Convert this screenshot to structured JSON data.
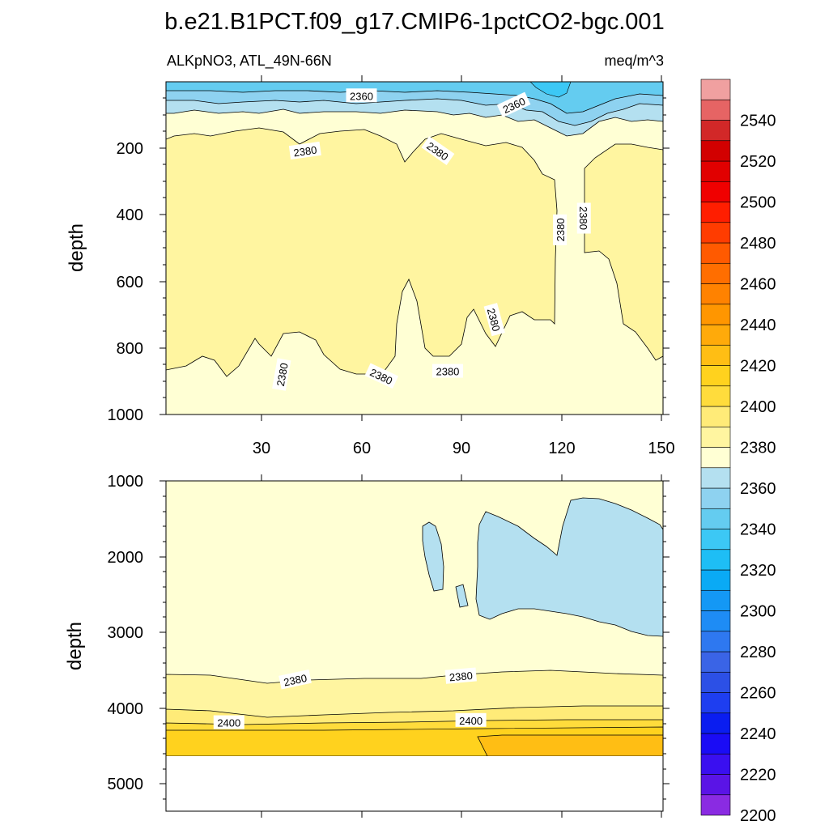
{
  "figure": {
    "title": "b.e21.B1PCT.f09_g17.CMIP6-1pctCO2-bgc.001"
  },
  "chart_data": [
    {
      "type": "contour",
      "panel": "top",
      "left_label": "ALKpNO3, ATL_49N-66N",
      "right_label": "meq/m^3",
      "ylabel": "depth",
      "xlabel": "",
      "xlim": [
        1,
        151
      ],
      "ylim": [
        1000,
        0
      ],
      "x_ticks": [
        30,
        60,
        90,
        120,
        150
      ],
      "y_ticks": [
        200,
        400,
        600,
        800,
        1000
      ],
      "contour_labels": [
        {
          "text": "2360",
          "x": 60,
          "y": 42
        },
        {
          "text": "2360",
          "x": 106,
          "y": 70
        },
        {
          "text": "2380",
          "x": 43,
          "y": 208
        },
        {
          "text": "2380",
          "x": 83,
          "y": 208
        },
        {
          "text": "2380",
          "x": 120,
          "y": 445
        },
        {
          "text": "2380",
          "x": 127,
          "y": 410
        },
        {
          "text": "2380",
          "x": 100,
          "y": 715
        },
        {
          "text": "2380",
          "x": 36,
          "y": 880
        },
        {
          "text": "2380",
          "x": 66,
          "y": 885
        },
        {
          "text": "2380",
          "x": 86,
          "y": 870
        }
      ]
    },
    {
      "type": "contour",
      "panel": "bottom",
      "ylabel": "depth",
      "xlabel": "",
      "xlim": [
        1,
        151
      ],
      "ylim": [
        5400,
        1000
      ],
      "y_ticks": [
        1000,
        2000,
        3000,
        4000,
        5000
      ],
      "contour_labels": [
        {
          "text": "2380",
          "x": 40,
          "y": 3650
        },
        {
          "text": "2380",
          "x": 90,
          "y": 3600
        },
        {
          "text": "2400",
          "x": 20,
          "y": 4220
        },
        {
          "text": "2400",
          "x": 93,
          "y": 4190
        }
      ]
    },
    {
      "type": "colorbar",
      "levels": [
        2200,
        2210,
        2220,
        2230,
        2240,
        2250,
        2260,
        2270,
        2280,
        2290,
        2300,
        2310,
        2320,
        2330,
        2340,
        2350,
        2360,
        2370,
        2380,
        2390,
        2400,
        2410,
        2420,
        2430,
        2440,
        2450,
        2460,
        2470,
        2480,
        2490,
        2500,
        2510,
        2520,
        2530,
        2540,
        2550,
        2560
      ],
      "tick_labels": [
        "2200",
        "2220",
        "2240",
        "2260",
        "2280",
        "2300",
        "2320",
        "2340",
        "2360",
        "2380",
        "2400",
        "2420",
        "2440",
        "2460",
        "2480",
        "2500",
        "2520",
        "2540"
      ],
      "colors": [
        "#8a2be2",
        "#5a14e6",
        "#3a0ff0",
        "#1a0cf5",
        "#0a1df0",
        "#1e3ef0",
        "#2c50e6",
        "#3a64e6",
        "#2e78f0",
        "#1e8cf5",
        "#1498f5",
        "#0aaaf5",
        "#1ebef5",
        "#3cc8f5",
        "#64ccf0",
        "#8ed2f0",
        "#b4e0f0",
        "#ffffd4",
        "#fff5a0",
        "#ffeb78",
        "#ffdc3c",
        "#ffd21e",
        "#ffbe14",
        "#ffaa0a",
        "#ff9600",
        "#ff8200",
        "#ff6e00",
        "#ff5a00",
        "#ff3c00",
        "#ff1e00",
        "#f00000",
        "#e10000",
        "#d20000",
        "#d22828",
        "#e66464",
        "#f0a0a0"
      ]
    }
  ]
}
